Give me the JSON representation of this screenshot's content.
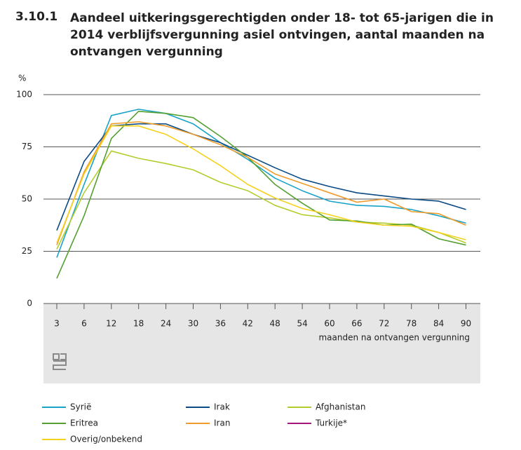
{
  "chart_data": {
    "type": "line",
    "title_number": "3.10.1",
    "title": "Aandeel uitkeringsgerechtigden onder 18- tot 65-jarigen die in 2014 verblijfsvergunning asiel ontvingen, aantal maanden na ontvangen vergunning",
    "y_label": "%",
    "x_label": "maanden na ontvangen vergunning",
    "categories": [
      "3",
      "6",
      "12",
      "18",
      "24",
      "30",
      "36",
      "42",
      "48",
      "54",
      "60",
      "66",
      "72",
      "78",
      "84",
      "90"
    ],
    "ylim": [
      0,
      100
    ],
    "yticks": [
      0,
      25,
      50,
      75,
      100
    ],
    "grid": true,
    "series": [
      {
        "name": "Syrië",
        "color": "#1aa3c8",
        "values": [
          22,
          57,
          90,
          93,
          91,
          86,
          77,
          69,
          60,
          54,
          49,
          47,
          46.5,
          45,
          42,
          38.5
        ]
      },
      {
        "name": "Irak",
        "color": "#0b4a85",
        "values": [
          35,
          68,
          85,
          86,
          86,
          81,
          77,
          71,
          65,
          59.5,
          56,
          53,
          51.5,
          50,
          49,
          45
        ]
      },
      {
        "name": "Afghanistan",
        "color": "#b5cc2e",
        "values": [
          26,
          53,
          73,
          69.5,
          67,
          64,
          58,
          54,
          47,
          42.5,
          41,
          39,
          38.5,
          37.5,
          34,
          29
        ]
      },
      {
        "name": "Eritrea",
        "color": "#53a031",
        "values": [
          12,
          42,
          79,
          92,
          91,
          89,
          80,
          70,
          57,
          48,
          40,
          39.5,
          37.5,
          38,
          31,
          28
        ]
      },
      {
        "name": "Iran",
        "color": "#ef9c2a",
        "values": [
          28,
          63,
          86,
          87,
          85,
          81,
          76,
          70,
          62,
          57.5,
          53,
          48.5,
          50,
          44,
          43,
          37.5
        ]
      },
      {
        "name": "Turkije*",
        "color": "#a6177e",
        "values": [
          null,
          null,
          null,
          null,
          null,
          null,
          null,
          null,
          null,
          null,
          null,
          null,
          null,
          null,
          null,
          null
        ]
      },
      {
        "name": "Overig/onbekend",
        "color": "#f5d21e",
        "values": [
          29,
          62,
          85,
          85,
          81,
          74,
          66,
          57,
          50.5,
          45.5,
          42.5,
          39,
          37.5,
          37,
          34,
          30.5
        ]
      }
    ]
  }
}
